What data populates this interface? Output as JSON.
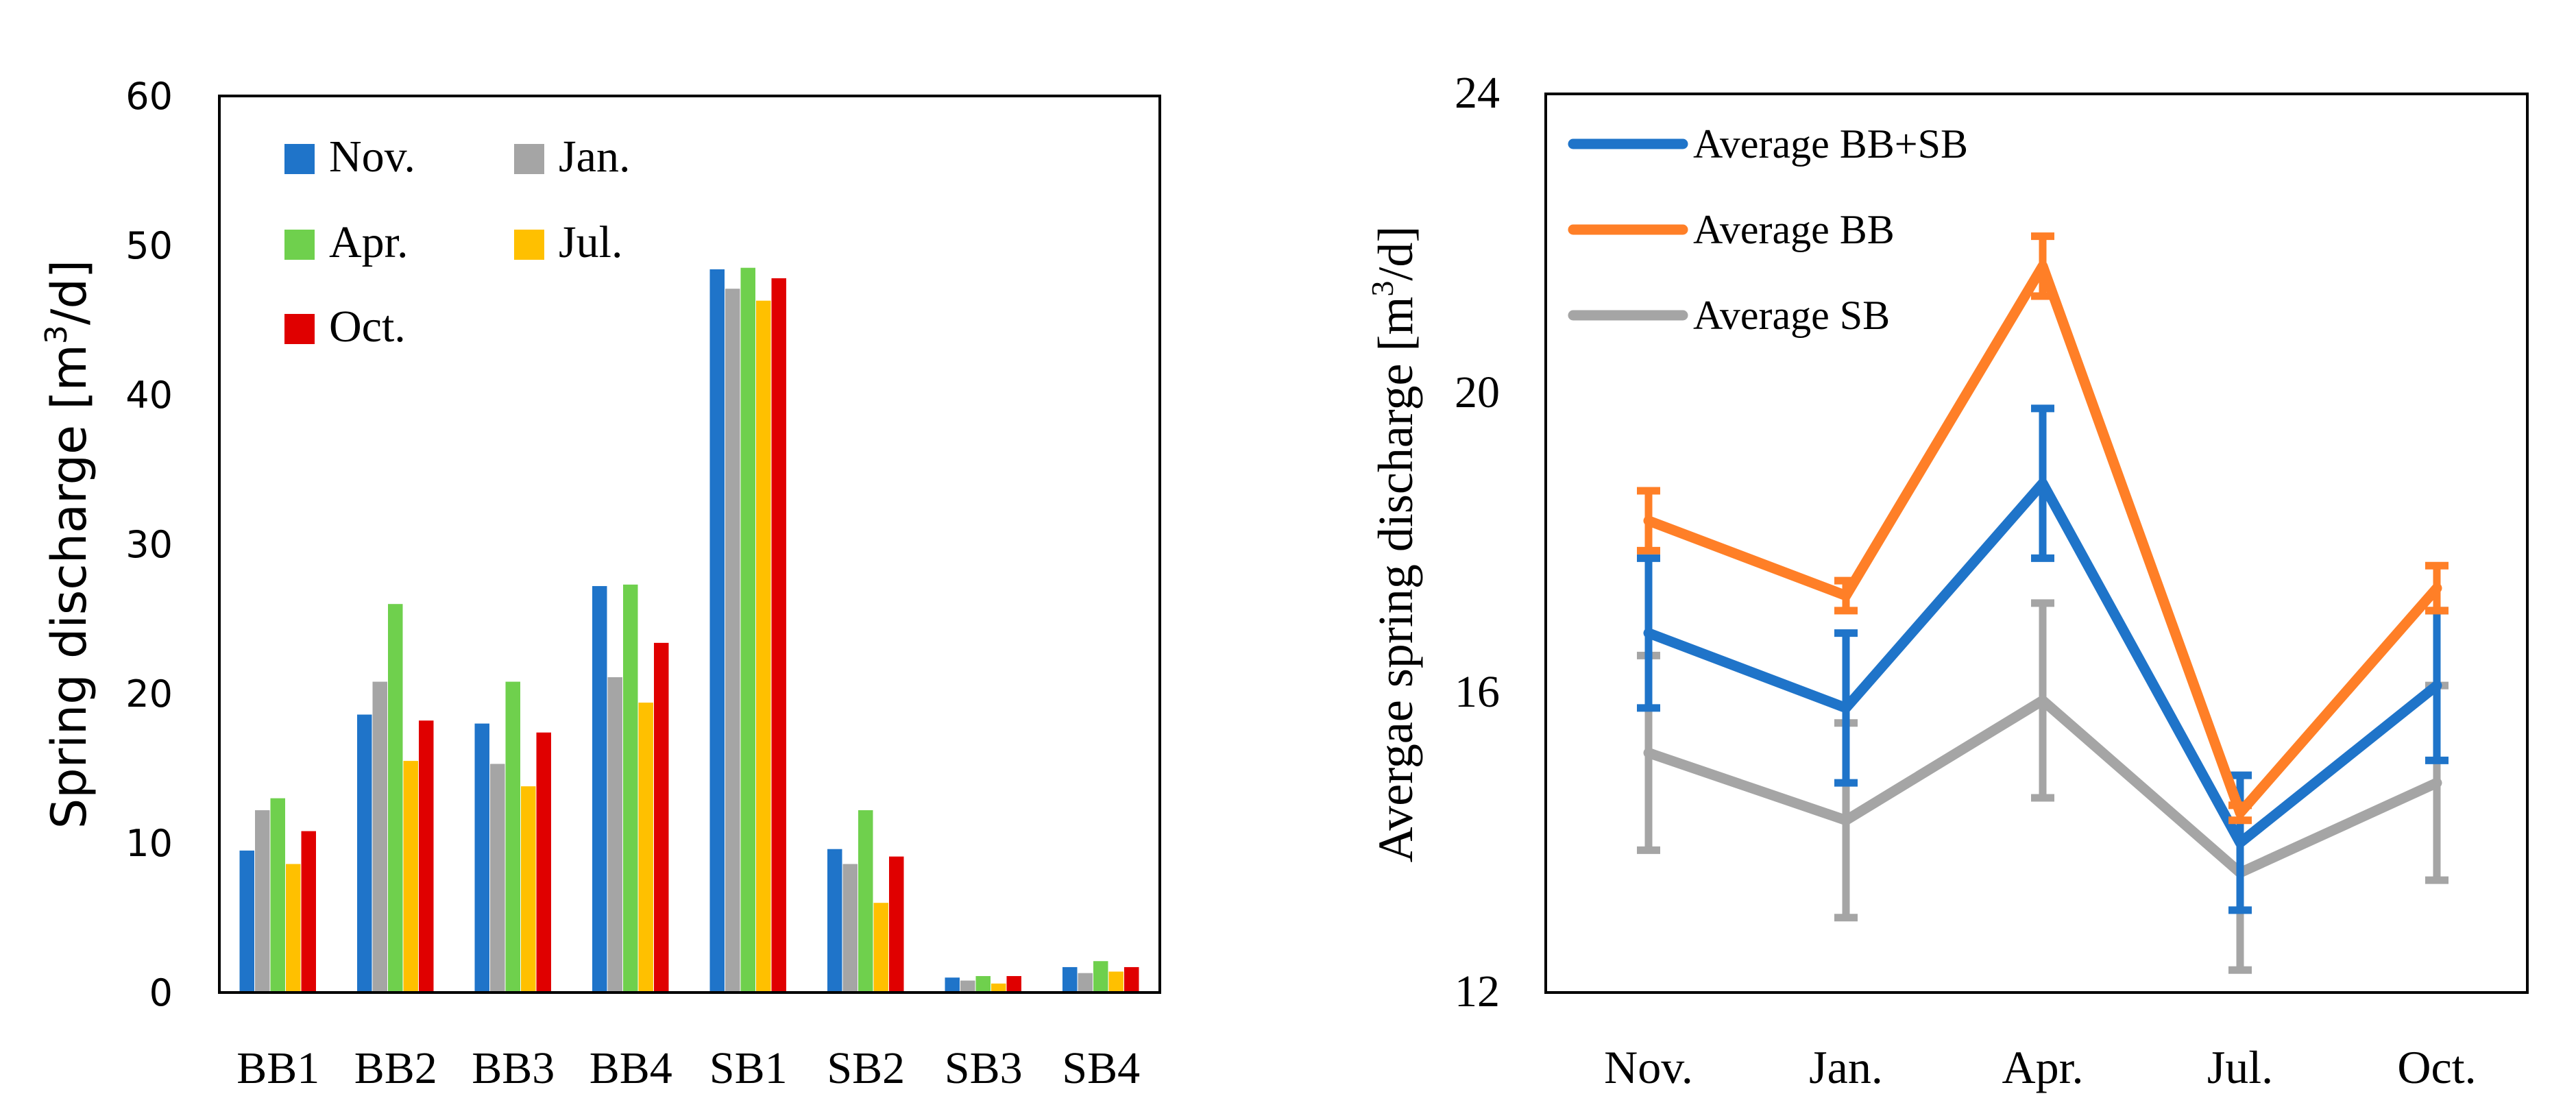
{
  "chart_data": [
    {
      "type": "bar",
      "title": "",
      "xlabel": "",
      "ylabel": "Spring discharge [m³/d]",
      "ylabel_parts": {
        "pre": "Spring discharge [m",
        "sup": "3",
        "post": "/d]"
      },
      "ylim": [
        0,
        60
      ],
      "yticks": [
        0,
        10,
        20,
        30,
        40,
        50,
        60
      ],
      "grid": false,
      "legend_position": "top-left",
      "categories": [
        "BB1",
        "BB2",
        "BB3",
        "BB4",
        "SB1",
        "SB2",
        "SB3",
        "SB4"
      ],
      "series": [
        {
          "name": "Nov.",
          "color": "#1f74c9",
          "values": [
            9.5,
            18.6,
            18.0,
            27.2,
            48.4,
            9.6,
            1.0,
            1.7
          ]
        },
        {
          "name": "Jan.",
          "color": "#a5a5a5",
          "values": [
            12.2,
            20.8,
            15.3,
            21.1,
            47.1,
            8.6,
            0.8,
            1.3
          ]
        },
        {
          "name": "Apr.",
          "color": "#6fd04d",
          "values": [
            13.0,
            26.0,
            20.8,
            27.3,
            48.5,
            12.2,
            1.1,
            2.1
          ]
        },
        {
          "name": "Jul.",
          "color": "#ffc000",
          "values": [
            8.6,
            15.5,
            13.8,
            19.4,
            46.3,
            6.0,
            0.6,
            1.4
          ]
        },
        {
          "name": "Oct.",
          "color": "#e00000",
          "values": [
            10.8,
            18.2,
            17.4,
            23.4,
            47.8,
            9.1,
            1.1,
            1.7
          ]
        }
      ]
    },
    {
      "type": "line",
      "title": "",
      "xlabel": "",
      "ylabel": "Avergae spring discharge [m³/d]",
      "ylabel_parts": {
        "pre": "Avergae spring discharge [m",
        "sup": "3",
        "post": "/d]"
      },
      "ylim": [
        12,
        24
      ],
      "yticks": [
        12,
        16,
        20,
        24
      ],
      "grid": false,
      "legend_position": "top-left",
      "categories": [
        "Nov.",
        "Jan.",
        "Apr.",
        "Jul.",
        "Oct."
      ],
      "series": [
        {
          "name": "Average BB+SB",
          "color": "#1f74c9",
          "values": [
            16.8,
            15.8,
            18.8,
            14.0,
            16.1
          ],
          "error": [
            1.0,
            1.0,
            1.0,
            0.9,
            1.0
          ]
        },
        {
          "name": "Average BB",
          "color": "#ff7f27",
          "values": [
            18.3,
            17.3,
            21.7,
            14.4,
            17.4
          ],
          "error": [
            0.4,
            0.2,
            0.4,
            0.1,
            0.3
          ]
        },
        {
          "name": "Average SB",
          "color": "#a5a5a5",
          "values": [
            15.2,
            14.3,
            15.9,
            13.6,
            14.8
          ],
          "error": [
            1.3,
            1.3,
            1.3,
            1.3,
            1.3
          ]
        }
      ]
    }
  ]
}
